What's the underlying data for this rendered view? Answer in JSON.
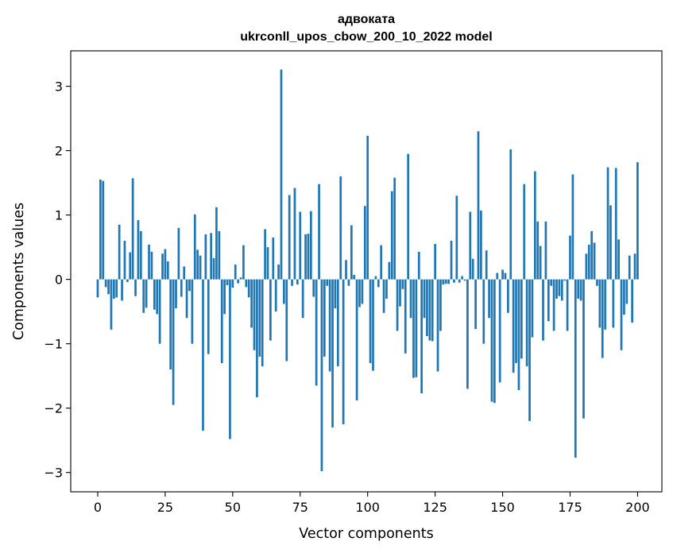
{
  "chart_data": {
    "type": "bar",
    "title_line1": "адвоката",
    "title_line2": "ukrconll_upos_cbow_200_10_2022 model",
    "xlabel": "Vector components",
    "ylabel": "Components values",
    "xlim": [
      -10,
      209
    ],
    "ylim": [
      -3.3,
      3.55
    ],
    "xticks": [
      0,
      25,
      50,
      75,
      100,
      125,
      150,
      175,
      200
    ],
    "yticks": [
      -3,
      -2,
      -1,
      0,
      1,
      2,
      3
    ],
    "bar_color": "#1f77b4",
    "values": [
      -0.28,
      1.55,
      1.53,
      -0.12,
      -0.23,
      -0.78,
      -0.3,
      -0.28,
      0.85,
      -0.33,
      0.6,
      -0.04,
      0.42,
      1.57,
      -0.26,
      0.92,
      0.75,
      -0.52,
      -0.44,
      0.54,
      0.43,
      -0.47,
      -0.54,
      -1.0,
      0.4,
      0.47,
      0.28,
      -1.4,
      -1.95,
      -0.45,
      0.8,
      -0.27,
      0.2,
      -0.6,
      -0.18,
      -1.0,
      1.01,
      0.46,
      0.37,
      -2.35,
      0.7,
      -1.16,
      0.72,
      0.33,
      1.12,
      0.75,
      -1.3,
      -0.54,
      -0.09,
      -2.48,
      -0.13,
      0.23,
      -0.06,
      0.03,
      0.53,
      -0.12,
      -0.28,
      -0.75,
      -1.1,
      -1.83,
      -1.2,
      -1.35,
      0.78,
      0.5,
      -0.95,
      0.65,
      -0.5,
      0.23,
      3.26,
      -0.38,
      -1.27,
      1.31,
      -0.1,
      1.42,
      -0.08,
      1.05,
      -0.6,
      0.7,
      0.71,
      1.06,
      -0.27,
      -1.65,
      1.48,
      -2.98,
      -1.2,
      -0.1,
      -1.43,
      -2.3,
      -0.45,
      -1.35,
      1.6,
      -2.25,
      0.3,
      -0.1,
      0.84,
      0.07,
      -1.88,
      -0.43,
      -0.38,
      1.14,
      2.23,
      -1.3,
      -1.42,
      0.05,
      -0.12,
      0.53,
      -0.52,
      -0.3,
      0.27,
      1.37,
      1.58,
      -0.8,
      -0.42,
      -0.15,
      -1.15,
      1.95,
      -0.6,
      -1.53,
      -1.52,
      0.43,
      -1.77,
      -0.6,
      -0.88,
      -0.95,
      -0.96,
      0.55,
      -1.43,
      -0.8,
      -0.08,
      -0.07,
      -0.07,
      0.6,
      -0.05,
      1.3,
      -0.05,
      0.05,
      -0.02,
      -1.7,
      1.05,
      0.32,
      -0.77,
      2.3,
      1.07,
      -1.0,
      0.45,
      -0.6,
      -1.9,
      -1.92,
      0.1,
      -1.6,
      0.15,
      0.1,
      -0.52,
      2.02,
      -1.45,
      -1.3,
      -1.72,
      -1.23,
      1.48,
      -1.35,
      -2.2,
      -0.9,
      1.68,
      0.9,
      0.52,
      -0.95,
      0.9,
      -0.65,
      -0.1,
      -0.8,
      -0.3,
      -0.26,
      -0.33,
      -0.02,
      -0.8,
      0.68,
      1.63,
      -2.77,
      -0.3,
      -0.33,
      -2.16,
      0.4,
      0.54,
      0.75,
      0.57,
      -0.1,
      -0.75,
      -1.22,
      -0.78,
      1.74,
      1.15,
      -0.75,
      1.73,
      0.62,
      -1.1,
      -0.55,
      -0.38,
      0.37,
      -0.67,
      0.4,
      1.82
    ]
  }
}
